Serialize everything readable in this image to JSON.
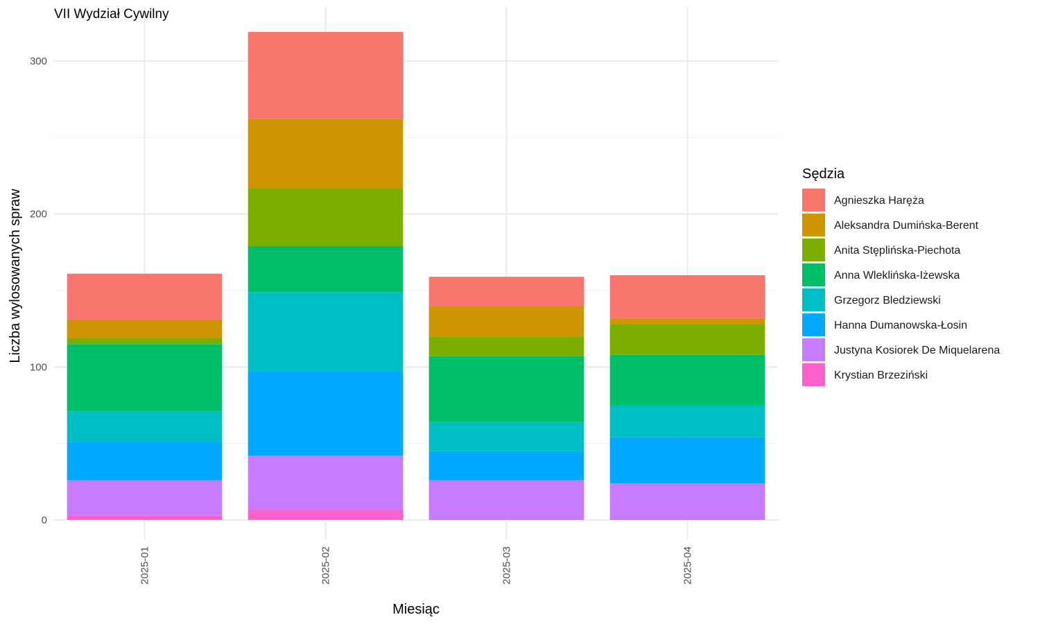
{
  "chart_data": {
    "type": "bar",
    "stacked": true,
    "title": "VII Wydział Cywilny",
    "xlabel": "Miesiąc",
    "ylabel": "Liczba wylosowanych spraw",
    "ylim": [
      0,
      320
    ],
    "yticks": [
      0,
      100,
      200,
      300
    ],
    "grid": true,
    "legend_position": "right",
    "legend_title": "Sędzia",
    "categories": [
      "2025-01",
      "2025-02",
      "2025-03",
      "2025-04"
    ],
    "series": [
      {
        "name": "Agnieszka Haręża",
        "color": "#F8766D",
        "values": [
          30,
          57,
          19,
          28
        ]
      },
      {
        "name": "Aleksandra Dumińska-Berent",
        "color": "#CD9600",
        "values": [
          12,
          45,
          20,
          4
        ]
      },
      {
        "name": "Anita Stęplińska-Piechota",
        "color": "#7CAE00",
        "values": [
          4,
          38,
          13,
          20
        ]
      },
      {
        "name": "Anna Wleklińska-Iżewska",
        "color": "#00BE67",
        "values": [
          44,
          30,
          43,
          33
        ]
      },
      {
        "name": "Grzegorz Bledziewski",
        "color": "#00BFC4",
        "values": [
          20,
          52,
          19,
          21
        ]
      },
      {
        "name": "Hanna Dumanowska-Łosin",
        "color": "#00A9FF",
        "values": [
          25,
          55,
          19,
          30
        ]
      },
      {
        "name": "Justyna Kosiorek De Miquelarena",
        "color": "#C77CFF",
        "values": [
          23,
          35,
          26,
          24
        ]
      },
      {
        "name": "Krystian Brzeziński",
        "color": "#FF61CC",
        "values": [
          3,
          7,
          0,
          0
        ]
      }
    ]
  }
}
